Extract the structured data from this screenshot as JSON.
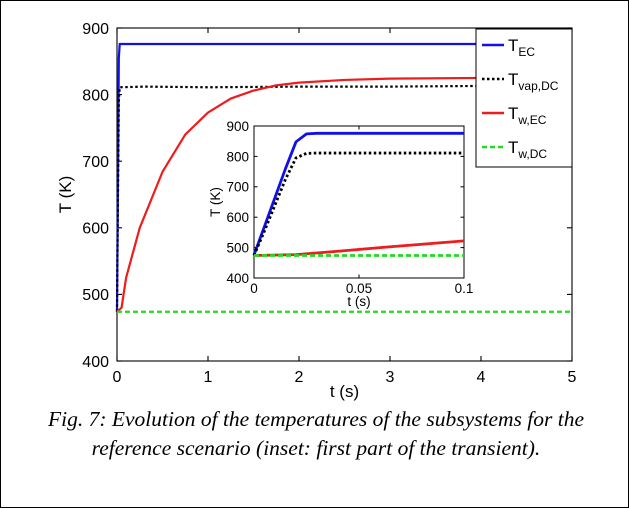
{
  "caption": "Fig. 7: Evolution of the temperatures of the subsystems for the reference scenario (inset: first part of the transient).",
  "colors": {
    "T_EC": "#1010e8",
    "T_vap_DC": "#000000",
    "T_w_EC": "#ee1c1c",
    "T_w_DC": "#22dd22"
  },
  "chart_data": [
    {
      "type": "line",
      "xlabel": "t (s)",
      "ylabel": "T (K)",
      "xlim": [
        0,
        5
      ],
      "ylim": [
        400,
        900
      ],
      "xticks": [
        0,
        1,
        2,
        3,
        4,
        5
      ],
      "yticks": [
        400,
        500,
        600,
        700,
        800,
        900
      ],
      "legend": "top-right",
      "series": [
        {
          "name": "T_EC",
          "label_main": "T",
          "label_sub": "EC",
          "style": "solid",
          "color": "#1010e8",
          "x": [
            0,
            0.01,
            0.02,
            0.03,
            5
          ],
          "y": [
            474,
            660,
            855,
            876,
            876
          ]
        },
        {
          "name": "T_vap,DC",
          "label_main": "T",
          "label_sub": "vap,DC",
          "style": "dotted",
          "color": "#000000",
          "x": [
            0,
            0.01,
            0.02,
            0.03,
            0.3,
            1,
            2,
            3,
            4,
            5
          ],
          "y": [
            474,
            640,
            790,
            811,
            812,
            811,
            812,
            812,
            813,
            812
          ]
        },
        {
          "name": "T_w,EC",
          "label_main": "T",
          "label_sub": "w,EC",
          "style": "solid",
          "color": "#ee1c1c",
          "x": [
            0,
            0.05,
            0.1,
            0.25,
            0.5,
            0.75,
            1.0,
            1.25,
            1.5,
            1.75,
            2.0,
            2.5,
            3.0,
            4.0,
            5.0
          ],
          "y": [
            474,
            480,
            525,
            600,
            684,
            740,
            773,
            794,
            806,
            814,
            818,
            822,
            824,
            825,
            825
          ]
        },
        {
          "name": "T_w,DC",
          "label_main": "T",
          "label_sub": "w,DC",
          "style": "dashed",
          "color": "#22dd22",
          "x": [
            0,
            5
          ],
          "y": [
            474,
            474
          ]
        }
      ]
    },
    {
      "type": "line",
      "xlabel": "t (s)",
      "ylabel": "T (K)",
      "xlim": [
        0,
        0.1
      ],
      "ylim": [
        400,
        900
      ],
      "xticks": [
        0,
        0.05,
        0.1
      ],
      "yticks": [
        400,
        500,
        600,
        700,
        800,
        900
      ],
      "series": [
        {
          "name": "T_EC",
          "style": "solid",
          "color": "#1010e8",
          "x": [
            0,
            0.005,
            0.01,
            0.015,
            0.02,
            0.025,
            0.03,
            0.1
          ],
          "y": [
            476,
            570,
            665,
            760,
            848,
            874,
            876,
            876
          ]
        },
        {
          "name": "T_vap,DC",
          "style": "dotted",
          "color": "#000000",
          "x": [
            0,
            0.005,
            0.01,
            0.015,
            0.02,
            0.025,
            0.03,
            0.1
          ],
          "y": [
            474,
            555,
            640,
            725,
            795,
            810,
            811,
            811
          ]
        },
        {
          "name": "T_w,EC",
          "style": "solid",
          "color": "#ee1c1c",
          "x": [
            0,
            0.02,
            0.04,
            0.06,
            0.08,
            0.1
          ],
          "y": [
            474,
            477,
            488,
            500,
            511,
            522
          ]
        },
        {
          "name": "T_w,DC",
          "style": "dashed",
          "color": "#22dd22",
          "x": [
            0,
            0.1
          ],
          "y": [
            474,
            474
          ]
        }
      ]
    }
  ]
}
